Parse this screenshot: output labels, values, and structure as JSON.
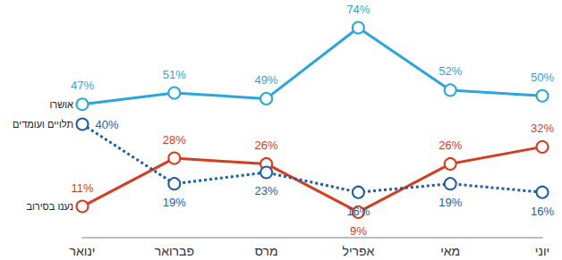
{
  "chart_data": {
    "type": "line",
    "categories": [
      "ינואר",
      "פברואר",
      "מרס",
      "אפריל",
      "מאי",
      "יוני"
    ],
    "series": [
      {
        "name": "אושרו",
        "color": "#2aa6df",
        "line_style": "solid",
        "marker": "circle",
        "values": [
          47,
          51,
          49,
          74,
          52,
          50
        ],
        "value_labels": [
          "47%",
          "51%",
          "49%",
          "74%",
          "52%",
          "50%"
        ]
      },
      {
        "name": "תלויים ועומדים",
        "color": "#1c5fa8",
        "line_style": "dotted",
        "marker": "circle",
        "values": [
          40,
          19,
          23,
          16,
          19,
          16
        ],
        "value_labels": [
          "40%",
          "19%",
          "23%",
          "16%",
          "19%",
          "16%"
        ]
      },
      {
        "name": "נענו בסירוב",
        "color": "#d53d1f",
        "line_style": "solid",
        "marker": "circle",
        "values": [
          11,
          28,
          26,
          9,
          26,
          32
        ],
        "value_labels": [
          "11%",
          "28%",
          "26%",
          "9%",
          "26%",
          "32%"
        ]
      }
    ],
    "ylim": [
      0,
      80
    ],
    "data_labels": true,
    "tick_labels": "x",
    "grid": false
  }
}
